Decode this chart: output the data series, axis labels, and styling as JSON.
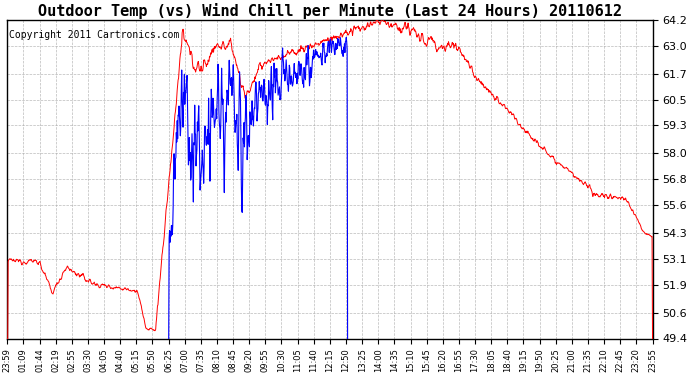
{
  "title": "Outdoor Temp (vs) Wind Chill per Minute (Last 24 Hours) 20110612",
  "copyright": "Copyright 2011 Cartronics.com",
  "ymin": 49.4,
  "ymax": 64.2,
  "yticks": [
    64.2,
    63.0,
    61.7,
    60.5,
    59.3,
    58.0,
    56.8,
    55.6,
    54.3,
    53.1,
    51.9,
    50.6,
    49.4
  ],
  "bg_color": "#ffffff",
  "plot_bg_color": "#ffffff",
  "grid_color": "#aaaaaa",
  "line_color_red": "#ff0000",
  "line_color_blue": "#0000ff",
  "title_fontsize": 11,
  "copyright_fontsize": 7,
  "xtick_fontsize": 6,
  "ytick_fontsize": 8,
  "xtick_labels": [
    "23:59",
    "01:09",
    "01:44",
    "02:19",
    "02:55",
    "03:30",
    "04:05",
    "04:40",
    "05:15",
    "05:50",
    "06:25",
    "07:00",
    "07:35",
    "08:10",
    "08:45",
    "09:20",
    "09:55",
    "10:30",
    "11:05",
    "11:40",
    "12:15",
    "12:50",
    "13:25",
    "14:00",
    "14:35",
    "15:10",
    "15:45",
    "16:20",
    "16:55",
    "17:30",
    "18:05",
    "18:40",
    "19:15",
    "19:50",
    "20:25",
    "21:00",
    "21:35",
    "22:10",
    "22:45",
    "23:20",
    "23:55"
  ],
  "figwidth": 6.9,
  "figheight": 3.75,
  "dpi": 100
}
